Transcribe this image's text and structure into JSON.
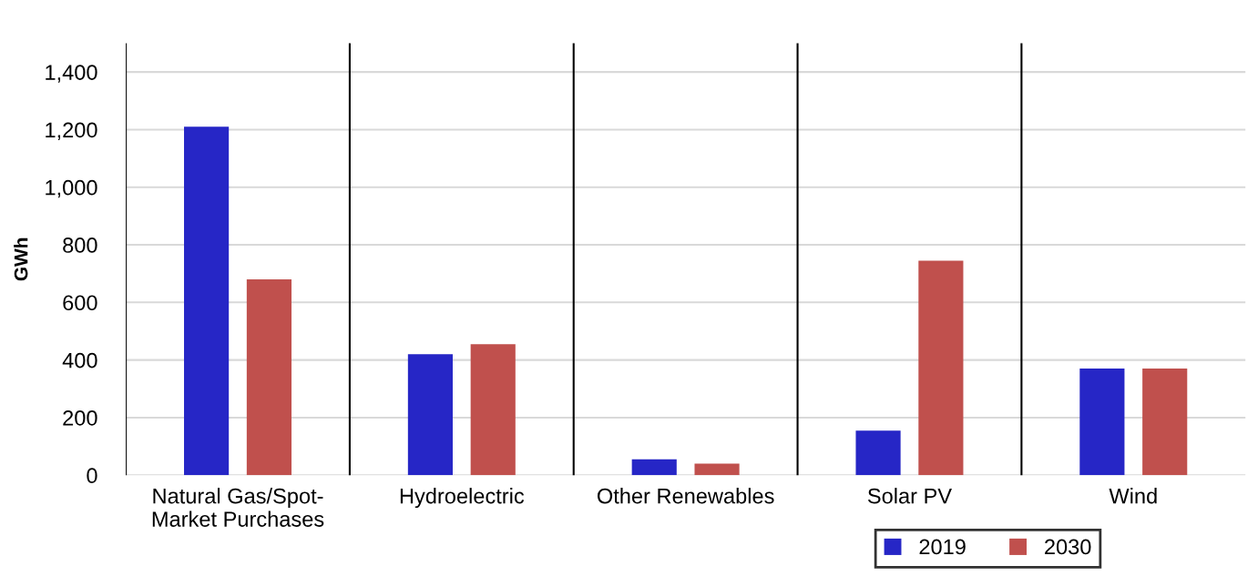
{
  "chart_data": {
    "type": "bar",
    "ylabel": "GWh",
    "categories": [
      "Natural Gas/Spot-\nMarket Purchases",
      "Hydroelectric",
      "Other Renewables",
      "Solar PV",
      "Wind"
    ],
    "series": [
      {
        "name": "2019",
        "color": "#2626c6",
        "values": [
          1210,
          420,
          55,
          155,
          370
        ]
      },
      {
        "name": "2030",
        "color": "#c0504d",
        "values": [
          680,
          455,
          40,
          745,
          370
        ]
      }
    ],
    "ylim": [
      0,
      1500
    ],
    "yticks": [
      0,
      {
        "value": 200,
        "label": "200"
      },
      {
        "value": 400,
        "label": "400"
      },
      {
        "value": 600,
        "label": "600"
      },
      {
        "value": 800,
        "label": "800"
      },
      {
        "value": 1000,
        "label": "1,000"
      },
      {
        "value": 1200,
        "label": "1,200"
      },
      {
        "value": 1400,
        "label": "1,400"
      }
    ],
    "grid": true,
    "legend": "bottom right"
  }
}
